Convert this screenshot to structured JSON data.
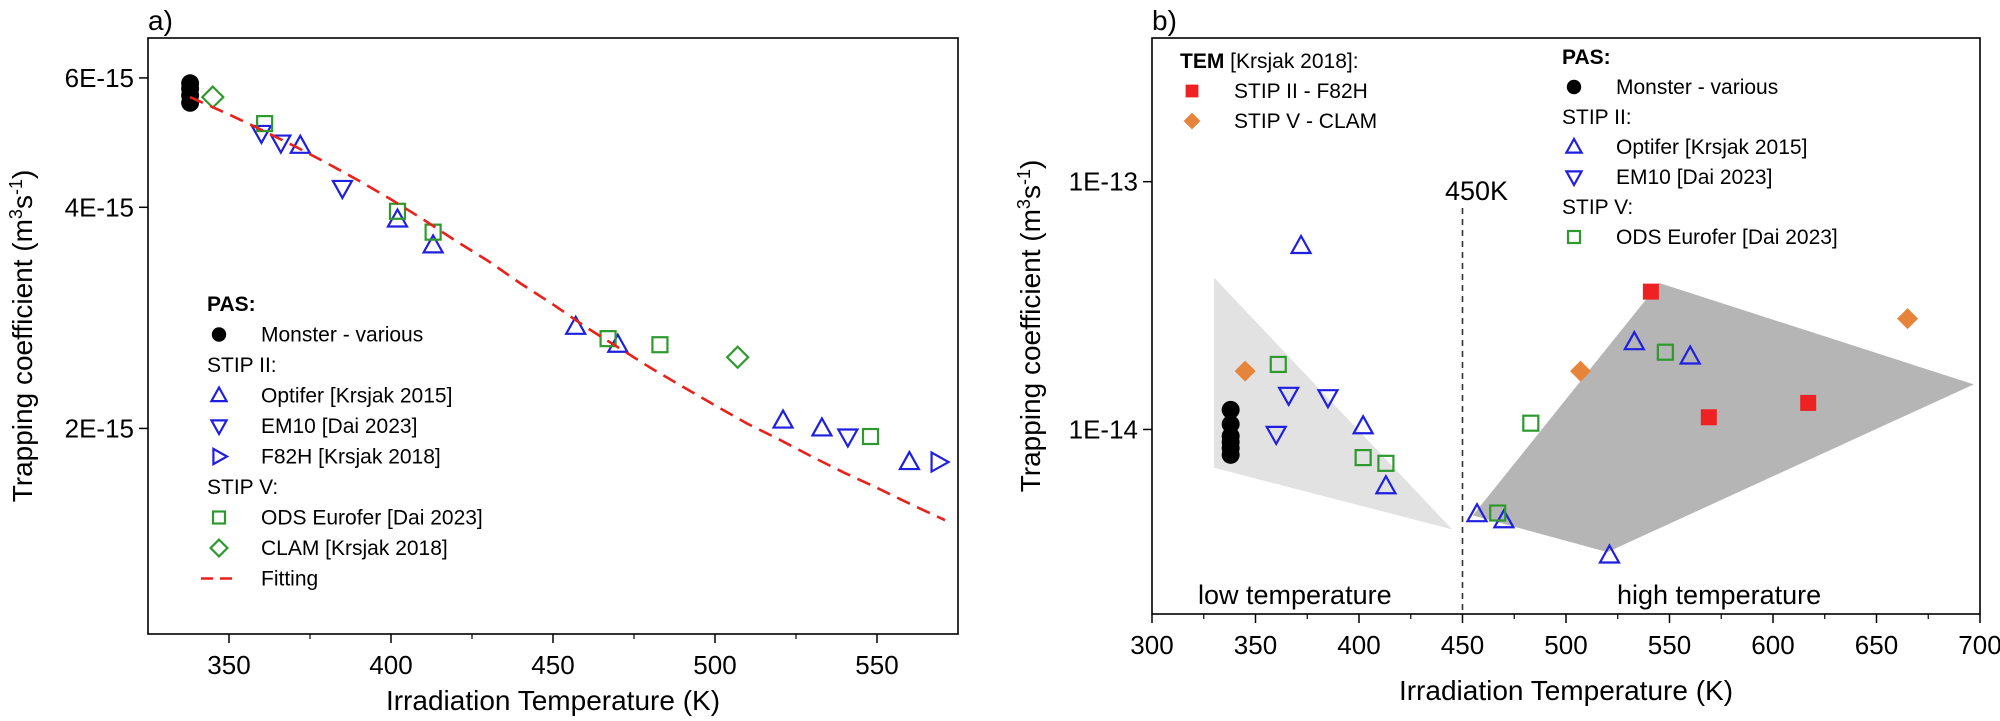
{
  "chart_data": [
    {
      "type": "scatter",
      "panel_label": "a)",
      "xlabel": "Irradiation Temperature (K)",
      "ylabel_main": "Trapping coefficient (m",
      "ylabel_sup1": "3",
      "ylabel_mid": "s",
      "ylabel_sup2": "-1",
      "ylabel_end": ")",
      "xlim": [
        325,
        575
      ],
      "ylim": [
        1.05e-15,
        6.8e-15
      ],
      "yscale": "log",
      "xticks": [
        {
          "v": 350,
          "label": "350"
        },
        {
          "v": 400,
          "label": "400"
        },
        {
          "v": 450,
          "label": "450"
        },
        {
          "v": 500,
          "label": "500"
        },
        {
          "v": 550,
          "label": "550"
        }
      ],
      "yticks": [
        {
          "v": 2e-15,
          "label": "2E-15"
        },
        {
          "v": 4e-15,
          "label": "4E-15"
        },
        {
          "v": 6e-15,
          "label": "6E-15"
        }
      ],
      "legend": {
        "position": "bottom-left",
        "header": "PAS:",
        "items": [
          {
            "kind": "marker",
            "marker": "circle",
            "color": "#000000",
            "label": "Monster - various"
          },
          {
            "kind": "heading",
            "label": "STIP II:"
          },
          {
            "kind": "marker",
            "marker": "tri_up",
            "color": "#1f1fe0",
            "label": "Optifer [Krsjak 2015]"
          },
          {
            "kind": "marker",
            "marker": "tri_down",
            "color": "#1f1fe0",
            "label": "EM10 [Dai 2023]"
          },
          {
            "kind": "marker",
            "marker": "tri_right",
            "color": "#1f1fe0",
            "label": "F82H [Krsjak 2018]"
          },
          {
            "kind": "heading",
            "label": "STIP V:"
          },
          {
            "kind": "marker",
            "marker": "square",
            "color": "#2e9a2e",
            "label": "ODS Eurofer [Dai 2023]"
          },
          {
            "kind": "marker",
            "marker": "diamond",
            "color": "#2e9a2e",
            "label": "CLAM [Krsjak 2018]"
          },
          {
            "kind": "line",
            "color": "#e8211b",
            "label": "Fitting"
          }
        ]
      },
      "series": [
        {
          "name": "Monster - various",
          "marker": "circle",
          "color": "#000000",
          "x": [
            338,
            338,
            338,
            338
          ],
          "y": [
            5.55e-15,
            5.68e-15,
            5.8e-15,
            5.9e-15
          ]
        },
        {
          "name": "Optifer [Krsjak 2015]",
          "marker": "tri_up",
          "color": "#1f1fe0",
          "x": [
            372,
            402,
            413,
            457,
            470,
            521,
            533,
            560
          ],
          "y": [
            4.85e-15,
            3.85e-15,
            3.55e-15,
            2.75e-15,
            2.6e-15,
            2.05e-15,
            2e-15,
            1.8e-15
          ]
        },
        {
          "name": "EM10 [Dai 2023]",
          "marker": "tri_down",
          "color": "#1f1fe0",
          "x": [
            360,
            366,
            385,
            541
          ],
          "y": [
            5.05e-15,
            4.9e-15,
            4.25e-15,
            1.95e-15
          ]
        },
        {
          "name": "F82H [Krsjak 2018]",
          "marker": "tri_right",
          "color": "#1f1fe0",
          "x": [
            569
          ],
          "y": [
            1.8e-15
          ]
        },
        {
          "name": "ODS Eurofer [Dai 2023]",
          "marker": "square",
          "color": "#2e9a2e",
          "x": [
            361,
            402,
            413,
            467,
            483,
            548
          ],
          "y": [
            5.2e-15,
            3.95e-15,
            3.7e-15,
            2.65e-15,
            2.6e-15,
            1.95e-15
          ]
        },
        {
          "name": "CLAM [Krsjak 2018]",
          "marker": "diamond",
          "color": "#2e9a2e",
          "x": [
            345,
            507
          ],
          "y": [
            5.65e-15,
            2.5e-15
          ]
        },
        {
          "name": "Fitting",
          "type": "line",
          "color": "#e8211b",
          "x": [
            338,
            350,
            360,
            370,
            380,
            390,
            400,
            410,
            420,
            430,
            440,
            450,
            460,
            470,
            480,
            490,
            500,
            510,
            520,
            530,
            540,
            550,
            560,
            571
          ],
          "y": [
            5.65e-15,
            5.35e-15,
            5.1e-15,
            4.85e-15,
            4.6e-15,
            4.35e-15,
            4.1e-15,
            3.85e-15,
            3.6e-15,
            3.38e-15,
            3.15e-15,
            2.95e-15,
            2.75e-15,
            2.58e-15,
            2.42e-15,
            2.28e-15,
            2.15e-15,
            2.03e-15,
            1.93e-15,
            1.83e-15,
            1.74e-15,
            1.66e-15,
            1.58e-15,
            1.5e-15
          ]
        }
      ]
    },
    {
      "type": "scatter",
      "panel_label": "b)",
      "xlabel": "Irradiation Temperature (K)",
      "ylabel_main": "Trapping coefficient (m",
      "ylabel_sup1": "3",
      "ylabel_mid": "s",
      "ylabel_sup2": "-1",
      "ylabel_end": ")",
      "xlim": [
        300,
        700
      ],
      "ylim": [
        1.8e-15,
        3.8e-13
      ],
      "yscale": "log",
      "xticks": [
        {
          "v": 300,
          "label": "300"
        },
        {
          "v": 350,
          "label": "350"
        },
        {
          "v": 400,
          "label": "400"
        },
        {
          "v": 450,
          "label": "450"
        },
        {
          "v": 500,
          "label": "500"
        },
        {
          "v": 550,
          "label": "550"
        },
        {
          "v": 600,
          "label": "600"
        },
        {
          "v": 650,
          "label": "650"
        },
        {
          "v": 700,
          "label": "700"
        }
      ],
      "yticks": [
        {
          "v": 1e-14,
          "label": "1E-14"
        },
        {
          "v": 1e-13,
          "label": "1E-13"
        }
      ],
      "annotations": {
        "divider_label": "450K",
        "divider_x": 450,
        "low_region": "low temperature",
        "high_region": "high temperature"
      },
      "regions": [
        {
          "name": "low temperature",
          "color": "#e2e2e2",
          "points": [
            [
              330,
              4.1e-14
            ],
            [
              330,
              7e-15
            ],
            [
              445,
              3.95e-15
            ]
          ]
        },
        {
          "name": "high temperature",
          "color": "#b5b5b5",
          "points": [
            [
              455,
              4.5e-15
            ],
            [
              545,
              3.9e-14
            ],
            [
              697,
              1.52e-14
            ],
            [
              520,
              3.2e-15
            ]
          ]
        }
      ],
      "legends": [
        {
          "position": "top-left",
          "header_bold": "TEM",
          "header_rest": " [Krsjak 2018]:",
          "items": [
            {
              "kind": "marker",
              "marker": "square_filled",
              "color": "#ee2222",
              "label": "STIP II - F82H"
            },
            {
              "kind": "marker",
              "marker": "diamond_filled",
              "color": "#e6843c",
              "label": "STIP V - CLAM"
            }
          ]
        },
        {
          "position": "top-right",
          "header": "PAS:",
          "items": [
            {
              "kind": "marker",
              "marker": "circle",
              "color": "#000000",
              "label": "Monster - various"
            },
            {
              "kind": "heading",
              "label": "STIP II:"
            },
            {
              "kind": "marker",
              "marker": "tri_up",
              "color": "#1f1fe0",
              "label": "Optifer [Krsjak 2015]"
            },
            {
              "kind": "marker",
              "marker": "tri_down",
              "color": "#1f1fe0",
              "label": "EM10 [Dai 2023]"
            },
            {
              "kind": "heading",
              "label": "STIP V:"
            },
            {
              "kind": "marker",
              "marker": "square",
              "color": "#2e9a2e",
              "label": "ODS Eurofer [Dai 2023]"
            }
          ]
        }
      ],
      "series": [
        {
          "name": "Monster - various",
          "marker": "circle",
          "color": "#000000",
          "x": [
            338,
            338,
            338,
            338,
            338,
            338
          ],
          "y": [
            7.9e-15,
            8.4e-15,
            8.9e-15,
            9.4e-15,
            1.05e-14,
            1.2e-14
          ]
        },
        {
          "name": "Optifer [Krsjak 2015]",
          "marker": "tri_up",
          "color": "#1f1fe0",
          "x": [
            372,
            402,
            413,
            457,
            470,
            521,
            533,
            560
          ],
          "y": [
            5.5e-14,
            1.03e-14,
            5.9e-15,
            4.55e-15,
            4.3e-15,
            3.1e-15,
            2.25e-14,
            1.97e-14
          ]
        },
        {
          "name": "EM10 [Dai 2023]",
          "marker": "tri_down",
          "color": "#1f1fe0",
          "x": [
            360,
            366,
            385
          ],
          "y": [
            9.6e-15,
            1.38e-14,
            1.35e-14
          ]
        },
        {
          "name": "ODS Eurofer [Dai 2023]",
          "marker": "square",
          "color": "#2e9a2e",
          "x": [
            361,
            402,
            413,
            467,
            483,
            548
          ],
          "y": [
            1.83e-14,
            7.7e-15,
            7.3e-15,
            4.6e-15,
            1.06e-14,
            2.05e-14
          ]
        },
        {
          "name": "STIP II - F82H",
          "marker": "square_filled",
          "color": "#ee2222",
          "x": [
            541,
            569,
            617
          ],
          "y": [
            3.6e-14,
            1.12e-14,
            1.28e-14
          ]
        },
        {
          "name": "STIP V - CLAM",
          "marker": "diamond_filled",
          "color": "#e6843c",
          "x": [
            345,
            507,
            665
          ],
          "y": [
            1.72e-14,
            1.72e-14,
            2.8e-14
          ]
        }
      ]
    }
  ]
}
